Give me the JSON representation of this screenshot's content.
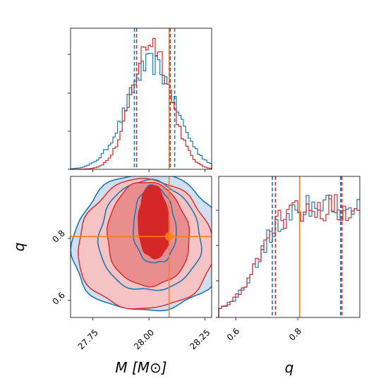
{
  "colors": {
    "blue": "#1f77b4",
    "red": "#d62728",
    "orange": "#ff7f0e",
    "red_fill_1": "#f5c3c4",
    "red_fill_2": "#ea8d8f",
    "red_fill_3": "#d62728",
    "blue_fill": "#cfdff0"
  },
  "chart_data": [
    {
      "type": "histogram",
      "panel": "M marginal",
      "x_range": [
        27.65,
        28.28
      ],
      "show_y_ticklabels": false,
      "series": [
        {
          "color": "blue",
          "peak_x": 28.01,
          "width": 0.11,
          "credible_interval": [
            27.935,
            28.115
          ]
        },
        {
          "color": "red",
          "peak_x": 28.01,
          "width": 0.085,
          "credible_interval": [
            27.945,
            28.095
          ]
        }
      ],
      "truth": 28.09
    },
    {
      "type": "contour",
      "panel": "M vs q joint",
      "xlabel": "M [M⊙]",
      "ylabel": "q",
      "x_range": [
        27.65,
        28.28
      ],
      "y_range": [
        0.545,
        1.0
      ],
      "x_ticks": [
        "27.75",
        "28.00",
        "28.25"
      ],
      "x_tick_values": [
        27.75,
        28.0,
        28.25
      ],
      "y_ticks": [
        "0.6",
        "0.8"
      ],
      "y_tick_values": [
        0.6,
        0.8
      ],
      "truth": {
        "x": 28.09,
        "y": 0.806
      }
    },
    {
      "type": "histogram",
      "panel": "q marginal",
      "xlabel": "q",
      "x_range": [
        0.545,
        1.0
      ],
      "x_ticks": [
        "0.6",
        "0.8"
      ],
      "x_tick_values": [
        0.6,
        0.8
      ],
      "show_y_ticklabels": false,
      "series": [
        {
          "color": "blue",
          "credible_interval": [
            0.718,
            0.938
          ]
        },
        {
          "color": "red",
          "credible_interval": [
            0.728,
            0.942
          ]
        }
      ],
      "truth": 0.806
    }
  ]
}
